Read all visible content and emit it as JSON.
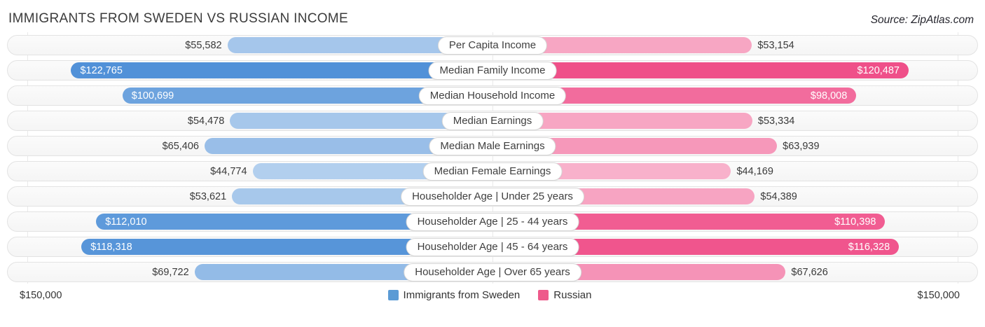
{
  "header": {
    "title": "IMMIGRANTS FROM SWEDEN VS RUSSIAN INCOME",
    "source": "Source: ZipAtlas.com"
  },
  "chart_data": {
    "type": "bar",
    "variant": "diverging-horizontal-tornado",
    "title": "IMMIGRANTS FROM SWEDEN VS RUSSIAN INCOME",
    "categories": [
      "Per Capita Income",
      "Median Family Income",
      "Median Household Income",
      "Median Earnings",
      "Median Male Earnings",
      "Median Female Earnings",
      "Householder Age | Under 25 years",
      "Householder Age | 25 - 44 years",
      "Householder Age | 45 - 64 years",
      "Householder Age | Over 65 years"
    ],
    "series": [
      {
        "name": "Immigrants from Sweden",
        "side": "left",
        "base_color": "#2f7cd0",
        "legend_color": "#5b9bd5",
        "values": [
          55582,
          122765,
          100699,
          54478,
          65406,
          44774,
          53621,
          112010,
          118318,
          69722
        ],
        "labels": [
          "$55,582",
          "$122,765",
          "$100,699",
          "$54,478",
          "$65,406",
          "$44,774",
          "$53,621",
          "$112,010",
          "$118,318",
          "$69,722"
        ]
      },
      {
        "name": "Russian",
        "side": "right",
        "base_color": "#ec2a70",
        "legend_color": "#ee5a8b",
        "values": [
          53154,
          120487,
          98008,
          53334,
          63939,
          44169,
          54389,
          110398,
          116328,
          67626
        ],
        "labels": [
          "$53,154",
          "$120,487",
          "$98,008",
          "$53,334",
          "$63,939",
          "$44,169",
          "$54,389",
          "$110,398",
          "$116,328",
          "$67,626"
        ]
      }
    ],
    "axis": {
      "max": 150000,
      "left_label": "$150,000",
      "right_label": "$150,000"
    },
    "legend": [
      {
        "label": "Immigrants from Sweden",
        "color": "#5b9bd5"
      },
      {
        "label": "Russian",
        "color": "#ee5a8b"
      }
    ],
    "grid": "subtle vertical lines at left edge, center and right edge",
    "legend_position": "bottom-center"
  }
}
